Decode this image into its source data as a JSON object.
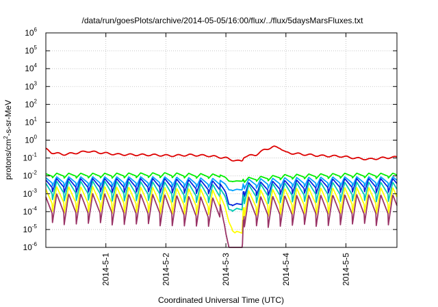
{
  "chart_data": {
    "type": "line",
    "title": "/data/run/goesPlots/archive/2014-05-05/16:00/flux/../flux/5daysMarsFluxes.txt",
    "xlabel": "Coordinated Universal Time (UTC)",
    "ylabel_base": "protons/cm",
    "ylabel_sup": "2",
    "ylabel_tail": "-s-sr-MeV",
    "y_scale": "log",
    "ylim_exp": [
      -6,
      6
    ],
    "y_tick_exponents": [
      -6,
      -5,
      -4,
      -3,
      -2,
      -1,
      0,
      1,
      2,
      3,
      4,
      5,
      6
    ],
    "y_tick_base": "10",
    "x_range_days": [
      0.0,
      5.85
    ],
    "x_ticks": [
      {
        "label": "2014-5-1",
        "day": 1
      },
      {
        "label": "2014-5-2",
        "day": 2
      },
      {
        "label": "2014-5-3",
        "day": 3
      },
      {
        "label": "2014-5-4",
        "day": 4
      },
      {
        "label": "2014-5-5",
        "day": 5
      }
    ],
    "grid": true,
    "legend": "none",
    "gap_day": [
      3.05,
      3.27
    ],
    "sawtooth_period_days": 0.2,
    "series": [
      {
        "color": "#dd0000",
        "type": "smooth",
        "points": [
          [
            0.0,
            -0.5
          ],
          [
            0.1,
            -0.7
          ],
          [
            0.3,
            -0.8
          ],
          [
            0.5,
            -0.72
          ],
          [
            0.7,
            -0.62
          ],
          [
            0.9,
            -0.7
          ],
          [
            1.2,
            -0.8
          ],
          [
            1.5,
            -0.82
          ],
          [
            1.8,
            -0.83
          ],
          [
            2.1,
            -0.87
          ],
          [
            2.4,
            -0.83
          ],
          [
            2.7,
            -0.87
          ],
          [
            3.0,
            -1.0
          ],
          [
            3.1,
            -1.1
          ],
          [
            3.2,
            -1.17
          ],
          [
            3.27,
            -1.17
          ],
          [
            3.3,
            -0.92
          ],
          [
            3.5,
            -0.82
          ],
          [
            3.65,
            -0.52
          ],
          [
            3.8,
            -0.38
          ],
          [
            3.9,
            -0.42
          ],
          [
            4.0,
            -0.7
          ],
          [
            4.3,
            -0.8
          ],
          [
            4.6,
            -0.88
          ],
          [
            4.9,
            -0.9
          ],
          [
            5.2,
            -1.02
          ],
          [
            5.4,
            -1.07
          ],
          [
            5.6,
            -1.0
          ],
          [
            5.85,
            -0.95
          ]
        ]
      },
      {
        "color": "#00ee00",
        "type": "saw",
        "base": [
          [
            0,
            -1.85
          ],
          [
            1,
            -1.85
          ],
          [
            2,
            -1.82
          ],
          [
            2.9,
            -1.9
          ],
          [
            3.0,
            -2.1
          ],
          [
            3.05,
            -2.28
          ],
          [
            3.27,
            -2.28
          ],
          [
            3.3,
            -2.1
          ],
          [
            4,
            -1.92
          ],
          [
            5,
            -1.85
          ],
          [
            5.85,
            -1.85
          ]
        ],
        "amp": 0.35
      },
      {
        "color": "#00a0ff",
        "type": "saw",
        "base": [
          [
            0,
            -2.05
          ],
          [
            1,
            -2.05
          ],
          [
            2,
            -2.05
          ],
          [
            2.9,
            -2.15
          ],
          [
            3.0,
            -2.5
          ],
          [
            3.05,
            -2.75
          ],
          [
            3.27,
            -2.75
          ],
          [
            3.3,
            -2.2
          ],
          [
            4,
            -2.1
          ],
          [
            5,
            -2.05
          ],
          [
            5.85,
            -2.05
          ]
        ],
        "amp": 0.7
      },
      {
        "color": "#0022dd",
        "type": "saw",
        "base": [
          [
            0,
            -2.15
          ],
          [
            1,
            -2.15
          ],
          [
            2,
            -2.15
          ],
          [
            2.9,
            -2.3
          ],
          [
            3.0,
            -2.95
          ],
          [
            3.05,
            -3.55
          ],
          [
            3.27,
            -3.55
          ],
          [
            3.3,
            -2.4
          ],
          [
            4,
            -2.25
          ],
          [
            5,
            -2.15
          ],
          [
            5.85,
            -2.15
          ]
        ],
        "amp": 1.0
      },
      {
        "color": "#00c8b4",
        "type": "saw",
        "base": [
          [
            0,
            -2.3
          ],
          [
            1,
            -2.3
          ],
          [
            2,
            -2.35
          ],
          [
            2.9,
            -2.5
          ],
          [
            3.0,
            -3.25
          ],
          [
            3.05,
            -3.82
          ],
          [
            3.27,
            -3.82
          ],
          [
            3.3,
            -2.5
          ],
          [
            4,
            -2.4
          ],
          [
            5,
            -2.35
          ],
          [
            5.85,
            -2.35
          ]
        ],
        "amp": 1.4
      },
      {
        "color": "#ffff00",
        "type": "saw",
        "base": [
          [
            0,
            -2.6
          ],
          [
            1,
            -2.6
          ],
          [
            2,
            -2.65
          ],
          [
            2.9,
            -2.8
          ],
          [
            3.0,
            -3.9
          ],
          [
            3.05,
            -4.5
          ],
          [
            3.15,
            -5.1
          ],
          [
            3.27,
            -5.1
          ],
          [
            3.3,
            -2.85
          ],
          [
            4,
            -2.7
          ],
          [
            5,
            -2.65
          ],
          [
            5.85,
            -2.65
          ]
        ],
        "amp": 1.9
      },
      {
        "color": "#993366",
        "type": "saw",
        "base": [
          [
            0,
            -3.0
          ],
          [
            1,
            -3.0
          ],
          [
            2,
            -3.05
          ],
          [
            2.9,
            -3.25
          ],
          [
            3.0,
            -5.2
          ],
          [
            3.05,
            -5.9
          ],
          [
            3.27,
            -6.3
          ],
          [
            3.3,
            -3.2
          ],
          [
            4,
            -3.1
          ],
          [
            5,
            -3.05
          ],
          [
            5.85,
            -3.05
          ]
        ],
        "amp": 2.2
      }
    ]
  }
}
